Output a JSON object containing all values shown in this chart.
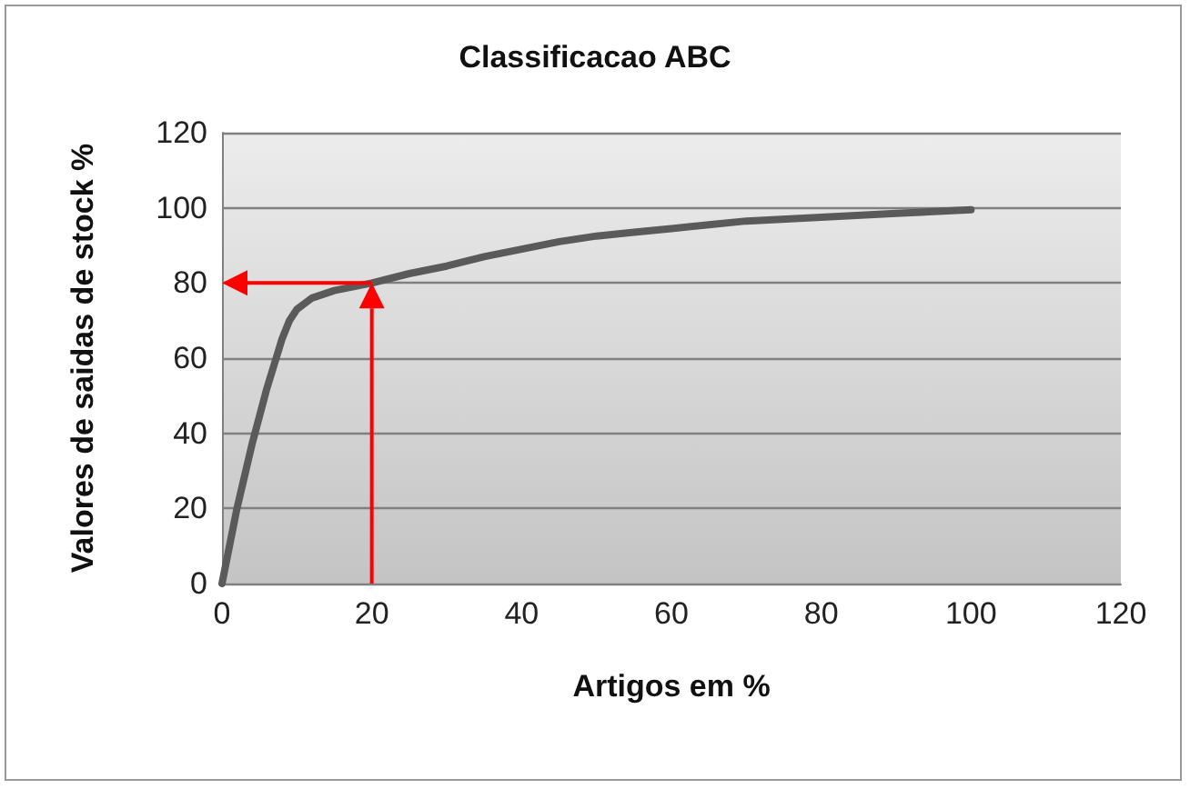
{
  "chart_data": {
    "type": "line",
    "title": "Classificacao ABC",
    "xlabel": "Artigos em %",
    "ylabel": "Valores de saidas de stock %",
    "series": [
      {
        "color": "#5a5a5a",
        "x": [
          0,
          2,
          4,
          6,
          8,
          9,
          10,
          12,
          15,
          20,
          25,
          30,
          35,
          40,
          45,
          50,
          55,
          60,
          65,
          70,
          80,
          90,
          100
        ],
        "values": [
          0,
          20,
          37,
          52,
          65,
          70,
          73,
          76,
          78,
          80,
          82.5,
          84.5,
          87,
          89,
          91,
          92.5,
          93.5,
          94.5,
          95.5,
          96.5,
          97.5,
          98.5,
          99.5
        ]
      }
    ],
    "xlim": [
      0,
      120
    ],
    "xticks": [
      0,
      20,
      40,
      60,
      80,
      100,
      120
    ],
    "ylim": [
      0,
      120
    ],
    "yticks": [
      0,
      20,
      40,
      60,
      80,
      100,
      120
    ],
    "grid": "y",
    "marker": "none",
    "line_style": "solid",
    "ref_lines": [
      {
        "axis": "x",
        "value": 20,
        "color": "#ff0000"
      },
      {
        "axis": "y",
        "value": 80,
        "color": "#ff0000"
      }
    ]
  }
}
